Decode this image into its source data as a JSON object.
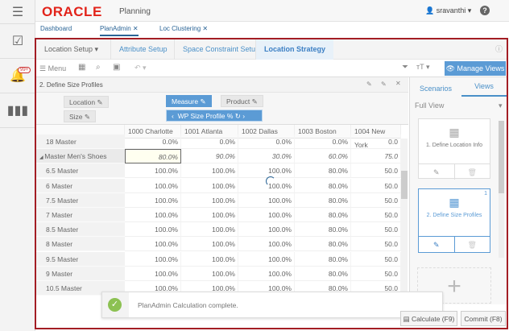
{
  "header": {
    "logo": "ORACLE",
    "app_title": "Planning",
    "user": "sravanthi",
    "notification_count": "99+"
  },
  "tabs": [
    {
      "label": "Dashboard"
    },
    {
      "label": "PlanAdmin",
      "active": true
    },
    {
      "label": "Loc Clustering"
    }
  ],
  "nav": {
    "dropdown": "Location Setup",
    "items": [
      "Attribute Setup",
      "Space Constraint Setup",
      "Location Strategy"
    ],
    "active": "Location Strategy"
  },
  "toolbar": {
    "menu": "Menu",
    "manage_views": "Manage Views"
  },
  "panel": {
    "title": "2. Define Size Profiles"
  },
  "pivot": {
    "row_dims": [
      "Location",
      "Size"
    ],
    "col_dims": [
      "Measure",
      "Product"
    ],
    "measure": "WP Size Profile %"
  },
  "grid": {
    "columns": [
      "1000 Charlotte",
      "1001 Atlanta",
      "1002 Dallas",
      "1003 Boston",
      "1004 New York"
    ],
    "rows": [
      {
        "label": "18 Master",
        "values": [
          "0.0%",
          "0.0%",
          "0.0%",
          "0.0%",
          "0.0"
        ]
      },
      {
        "label": "Master Men's Shoes",
        "values": [
          "80.0%",
          "90.0%",
          "30.0%",
          "60.0%",
          "75.0"
        ],
        "italic": true
      },
      {
        "label": "6.5 Master",
        "values": [
          "100.0%",
          "100.0%",
          "100.0%",
          "80.0%",
          "50.0"
        ]
      },
      {
        "label": "6 Master",
        "values": [
          "100.0%",
          "100.0%",
          "100.0%",
          "80.0%",
          "50.0"
        ]
      },
      {
        "label": "7.5 Master",
        "values": [
          "100.0%",
          "100.0%",
          "100.0%",
          "80.0%",
          "50.0"
        ]
      },
      {
        "label": "7 Master",
        "values": [
          "100.0%",
          "100.0%",
          "100.0%",
          "80.0%",
          "50.0"
        ]
      },
      {
        "label": "8.5 Master",
        "values": [
          "100.0%",
          "100.0%",
          "100.0%",
          "80.0%",
          "50.0"
        ]
      },
      {
        "label": "8 Master",
        "values": [
          "100.0%",
          "100.0%",
          "100.0%",
          "80.0%",
          "50.0"
        ]
      },
      {
        "label": "9.5 Master",
        "values": [
          "100.0%",
          "100.0%",
          "100.0%",
          "80.0%",
          "50.0"
        ]
      },
      {
        "label": "9 Master",
        "values": [
          "100.0%",
          "100.0%",
          "100.0%",
          "80.0%",
          "50.0"
        ]
      },
      {
        "label": "10.5 Master",
        "values": [
          "100.0%",
          "100.0%",
          "100.0%",
          "80.0%",
          "50.0"
        ]
      }
    ]
  },
  "side": {
    "tabs": [
      "Scenarios",
      "Views"
    ],
    "active_tab": "Views",
    "view_select": "Full View",
    "cards": [
      {
        "label": "1. Define Location Info"
      },
      {
        "label": "2. Define Size Profiles",
        "badge": "1",
        "active": true
      }
    ]
  },
  "toast": {
    "message": "PlanAdmin Calculation complete."
  },
  "buttons": {
    "calculate": "Calculate (F9)",
    "commit": "Commit (F8)"
  },
  "colors": {
    "accent": "#5b9bd5",
    "brand": "#e2231a",
    "frame": "#a31d24",
    "success": "#8cc152"
  }
}
